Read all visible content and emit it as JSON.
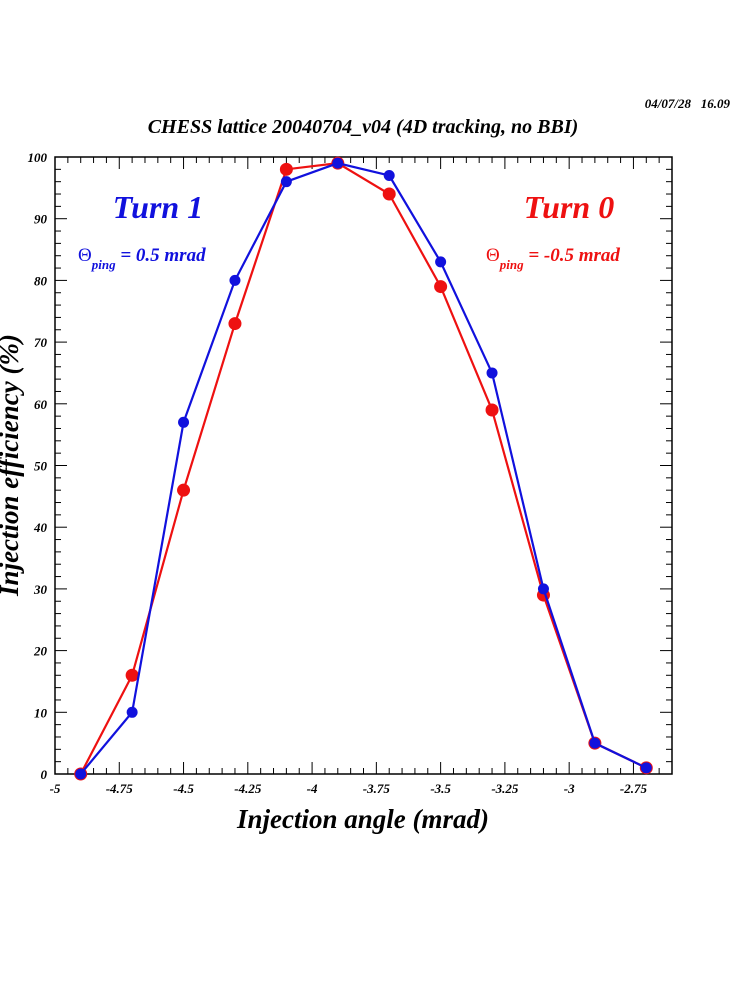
{
  "timestamp": "04/07/28   16.09",
  "chart_data": {
    "type": "line",
    "title": "CHESS lattice 20040704_v04 (4D tracking, no BBI)",
    "xlabel": "Injection angle (mrad)",
    "ylabel": "Injection efficiency (%)",
    "xlim": [
      -5,
      -2.6
    ],
    "ylim": [
      0,
      100
    ],
    "x_ticks": [
      -5,
      -4.75,
      -4.5,
      -4.25,
      -4,
      -3.75,
      -3.5,
      -3.25,
      -3,
      -2.75
    ],
    "x_tick_labels": [
      "-5",
      "-4.75",
      "-4.5",
      "-4.25",
      "-4",
      "-3.75",
      "-3.5",
      "-3.25",
      "-3",
      "-2.75"
    ],
    "y_ticks": [
      0,
      10,
      20,
      30,
      40,
      50,
      60,
      70,
      80,
      90,
      100
    ],
    "y_tick_labels": [
      "0",
      "10",
      "20",
      "30",
      "40",
      "50",
      "60",
      "70",
      "80",
      "90",
      "100"
    ],
    "grid": false,
    "x": [
      -4.9,
      -4.7,
      -4.5,
      -4.3,
      -4.1,
      -3.9,
      -3.7,
      -3.5,
      -3.3,
      -3.1,
      -2.9,
      -2.7
    ],
    "series": [
      {
        "name": "Turn 0",
        "color": "#ee1111",
        "values": [
          0,
          16,
          46,
          73,
          98,
          99,
          94,
          79,
          59,
          29,
          5,
          1
        ]
      },
      {
        "name": "Turn 1",
        "color": "#1111dd",
        "values": [
          0,
          10,
          57,
          80,
          96,
          99,
          97,
          83,
          65,
          30,
          5,
          1
        ]
      }
    ],
    "annotations": [
      {
        "id": "turn1",
        "label": "Turn 1",
        "sub_prefix": "Θ",
        "sub_subscript": "ping",
        "sub_value": " = 0.5 mrad",
        "color": "#1111dd",
        "position": "top-left"
      },
      {
        "id": "turn0",
        "label": "Turn 0",
        "sub_prefix": "Θ",
        "sub_subscript": "ping",
        "sub_value": " = -0.5 mrad",
        "color": "#ee1111",
        "position": "top-right"
      }
    ]
  }
}
